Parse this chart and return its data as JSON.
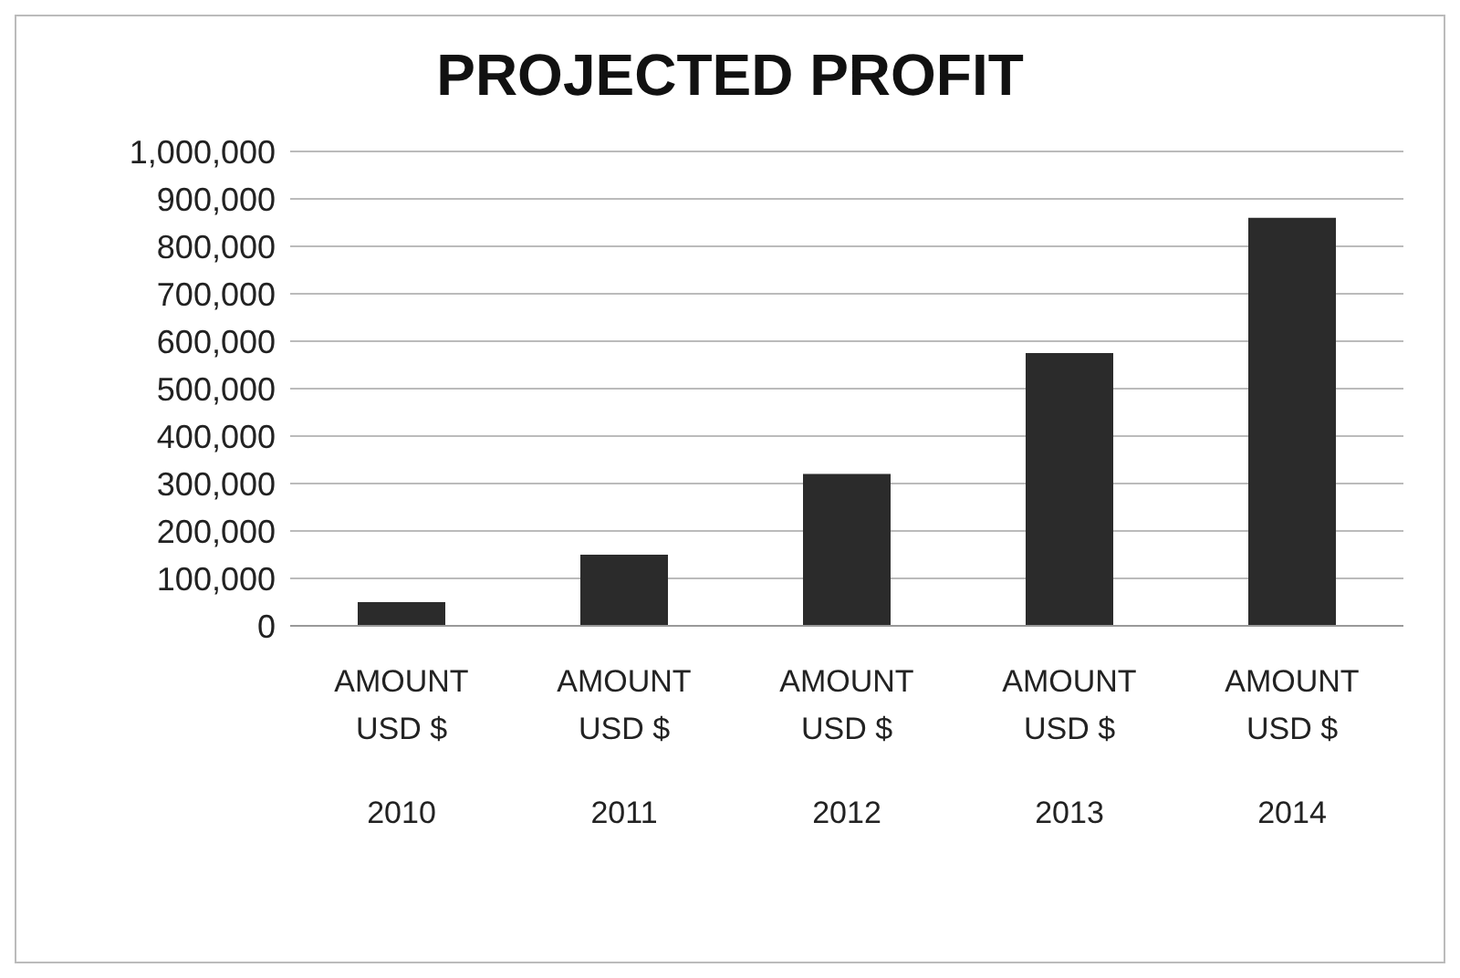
{
  "chart_data": {
    "type": "bar",
    "title": "PROJECTED PROFIT",
    "categories": [
      "AMOUNT USD $ 2010",
      "AMOUNT USD $ 2011",
      "AMOUNT USD $ 2012",
      "AMOUNT USD $ 2013",
      "AMOUNT USD $ 2014"
    ],
    "values": [
      50000,
      150000,
      320000,
      575000,
      860000
    ],
    "color": "#2b2b2b",
    "ylim": [
      0,
      1000000
    ],
    "yticks": [
      0,
      {
        "value": 100000,
        "label": "100,000"
      },
      {
        "value": 200000,
        "label": "200,000"
      },
      {
        "value": 300000,
        "label": "300,000"
      },
      {
        "value": 400000,
        "label": "400,000"
      },
      {
        "value": 500000,
        "label": "500,000"
      },
      {
        "value": 600000,
        "label": "600,000"
      },
      {
        "value": 700000,
        "label": "700,000"
      },
      {
        "value": 800000,
        "label": "800,000"
      },
      {
        "value": 900000,
        "label": "900,000"
      },
      {
        "value": 1000000,
        "label": "1,000,000"
      }
    ],
    "grid": "y"
  }
}
